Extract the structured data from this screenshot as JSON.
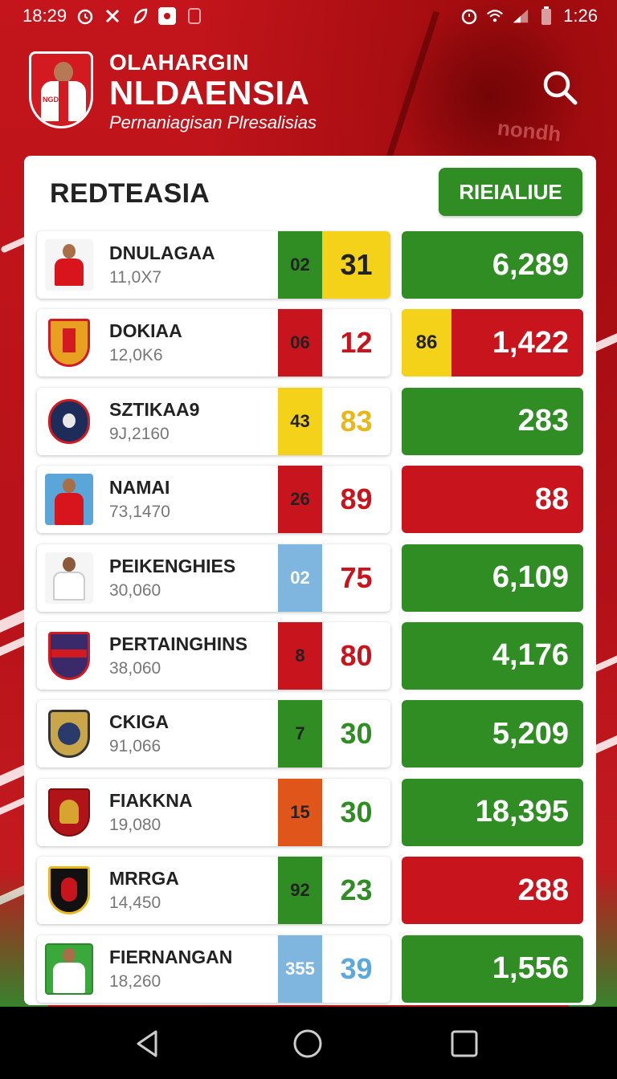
{
  "status_bar": {
    "time_left": "18:29",
    "time_right": "1:26",
    "left_icons": [
      "alarm-icon",
      "tools-icon",
      "leaf-icon",
      "video-icon",
      "badge-icon"
    ],
    "right_icons": [
      "alarm-icon",
      "wifi-icon",
      "signal-icon",
      "battery-icon"
    ]
  },
  "header": {
    "line1": "OLAHARGIN",
    "title": "NLDAENSIA",
    "tagline": "Pernaniagisan Plresalisias"
  },
  "card": {
    "title": "REDTEASIA",
    "action_label": "RIEIALIUE"
  },
  "colors": {
    "green": "#2f8d24",
    "red": "#c8141c",
    "yellow": "#f4d21a",
    "blue": "#7fb6e0",
    "orange": "#e0561a",
    "brand_red": "#c0141a"
  },
  "rows": [
    {
      "name": "DNULAGAA",
      "sub": "11,0X7",
      "a": "02",
      "b": "31",
      "a_color": "green",
      "b_bg": "yellow",
      "b_fg": "#222",
      "pre": "",
      "value": "6,289",
      "value_color": "green",
      "avatar": "player-red"
    },
    {
      "name": "DOKIAA",
      "sub": "12,0K6",
      "a": "06",
      "b": "12",
      "a_color": "red",
      "b_bg": "white",
      "b_fg": "#c8141c",
      "pre": "86",
      "value": "1,422",
      "value_color": "red",
      "avatar": "crest-orange"
    },
    {
      "name": "SZTIKAA9",
      "sub": "9J,2160",
      "a": "43",
      "b": "83",
      "a_color": "yellow",
      "b_bg": "white",
      "b_fg": "#e8b818",
      "pre": "",
      "value": "283",
      "value_color": "green",
      "avatar": "crest-navy"
    },
    {
      "name": "NAMAI",
      "sub": "73,1470",
      "a": "26",
      "b": "89",
      "a_color": "red",
      "b_bg": "white",
      "b_fg": "#c8141c",
      "pre": "",
      "value": "88",
      "value_color": "red",
      "avatar": "player-blue"
    },
    {
      "name": "PEIKENGHIES",
      "sub": "30,060",
      "a": "02",
      "b": "75",
      "a_color": "blue",
      "b_bg": "white",
      "b_fg": "#c8141c",
      "pre": "",
      "value": "6,109",
      "value_color": "green",
      "avatar": "player-white"
    },
    {
      "name": "PERTAINGHINS",
      "sub": "38,060",
      "a": "8",
      "b": "80",
      "a_color": "red",
      "b_bg": "white",
      "b_fg": "#c8141c",
      "pre": "",
      "value": "4,176",
      "value_color": "green",
      "avatar": "crest-purple"
    },
    {
      "name": "CKIGA",
      "sub": "91,066",
      "a": "7",
      "b": "30",
      "a_color": "green",
      "b_bg": "white",
      "b_fg": "#2f8d24",
      "pre": "",
      "value": "5,209",
      "value_color": "green",
      "avatar": "crest-gold"
    },
    {
      "name": "FIAKKNA",
      "sub": "19,080",
      "a": "15",
      "b": "30",
      "a_color": "orange",
      "b_bg": "white",
      "b_fg": "#2f8d24",
      "pre": "",
      "value": "18,395",
      "value_color": "green",
      "avatar": "crest-garuda"
    },
    {
      "name": "MRRGA",
      "sub": "14,450",
      "a": "92",
      "b": "23",
      "a_color": "green",
      "b_bg": "white",
      "b_fg": "#2f8d24",
      "pre": "",
      "value": "288",
      "value_color": "red",
      "avatar": "crest-black"
    },
    {
      "name": "FIERNANGAN",
      "sub": "18,260",
      "a": "355",
      "b": "39",
      "a_color": "blue",
      "b_bg": "white",
      "b_fg": "#5aa8dc",
      "pre": "",
      "value": "1,556",
      "value_color": "green",
      "avatar": "player-green"
    }
  ],
  "nav": [
    "back-icon",
    "home-icon",
    "recents-icon"
  ]
}
